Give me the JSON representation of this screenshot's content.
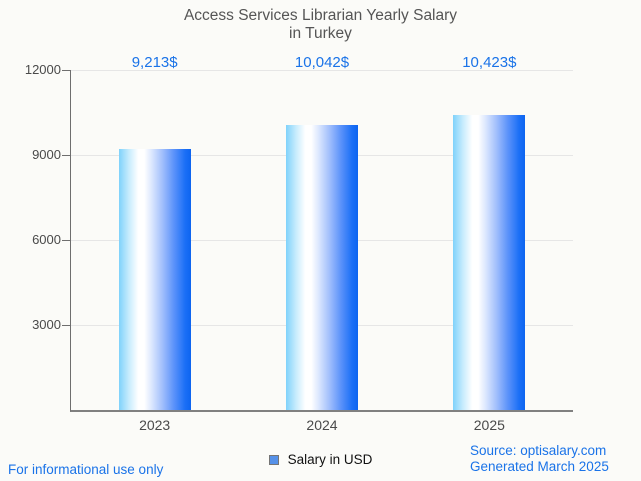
{
  "title": {
    "line1": "Access Services Librarian Yearly Salary",
    "line2": "in Turkey"
  },
  "chart_data": {
    "type": "bar",
    "title": "Access Services Librarian Yearly Salary in Turkey",
    "categories": [
      "2023",
      "2024",
      "2025"
    ],
    "values": [
      9213,
      10042,
      10423
    ],
    "value_labels": [
      "9,213$",
      "10,042$",
      "10,423$"
    ],
    "series_name": "Salary in USD",
    "xlabel": "",
    "ylabel": "",
    "ylim": [
      0,
      12000
    ],
    "yticks": [
      3000,
      6000,
      9000,
      12000
    ],
    "grid": true,
    "legend_position": "bottom"
  },
  "legend": {
    "label": "Salary in USD"
  },
  "footer": {
    "disclaimer": "For informational use only",
    "source": "Source: optisalary.com",
    "generated": "Generated March 2025"
  },
  "colors": {
    "accent_blue": "#1a73e8",
    "bar_gradient_left": "#7fd2fb",
    "bar_gradient_mid": "#ffffff",
    "bar_gradient_right": "#0d64f0",
    "legend_swatch": "#5691e8",
    "gridline": "#e6e6e6",
    "axis": "#6e6e6e",
    "title_text": "#555555",
    "tick_text": "#4a4a4a",
    "background": "#fbfbf8"
  }
}
